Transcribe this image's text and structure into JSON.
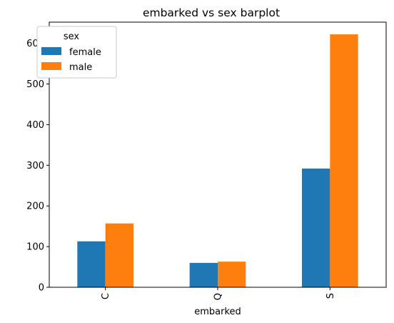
{
  "chart_data": {
    "type": "bar",
    "title": "embarked vs sex barplot",
    "xlabel": "embarked",
    "ylabel": "",
    "categories": [
      "C",
      "Q",
      "S"
    ],
    "series": [
      {
        "name": "female",
        "color": "#1f77b4",
        "values": [
          113,
          60,
          292
        ]
      },
      {
        "name": "male",
        "color": "#ff7f0e",
        "values": [
          157,
          63,
          622
        ]
      }
    ],
    "ylim": [
      0,
      652
    ],
    "yticks": [
      0,
      100,
      200,
      300,
      400,
      500,
      600
    ],
    "legend": {
      "title": "sex",
      "placement": "top-left"
    },
    "grid": false
  }
}
